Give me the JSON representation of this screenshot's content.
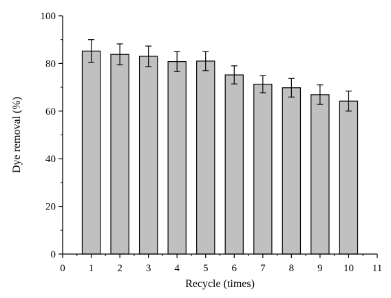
{
  "chart_data": {
    "type": "bar",
    "title": "",
    "xlabel": "Recycle (times)",
    "ylabel": "Dye removal (%)",
    "xlim": [
      0,
      11
    ],
    "ylim": [
      0,
      100
    ],
    "x_ticks": [
      "0",
      "1",
      "2",
      "3",
      "4",
      "5",
      "6",
      "7",
      "8",
      "9",
      "10",
      "11"
    ],
    "y_ticks": [
      "0",
      "20",
      "40",
      "60",
      "80",
      "100"
    ],
    "categories": [
      1,
      2,
      3,
      4,
      5,
      6,
      7,
      8,
      9,
      10
    ],
    "values": [
      85.2,
      83.8,
      83.0,
      80.8,
      81.0,
      75.2,
      71.3,
      69.8,
      66.9,
      64.2
    ],
    "errors": [
      4.8,
      4.4,
      4.3,
      4.2,
      4.0,
      3.8,
      3.6,
      3.9,
      4.1,
      4.2
    ],
    "bar_color": "#c0c0c0",
    "grid": false,
    "legend": "none"
  }
}
